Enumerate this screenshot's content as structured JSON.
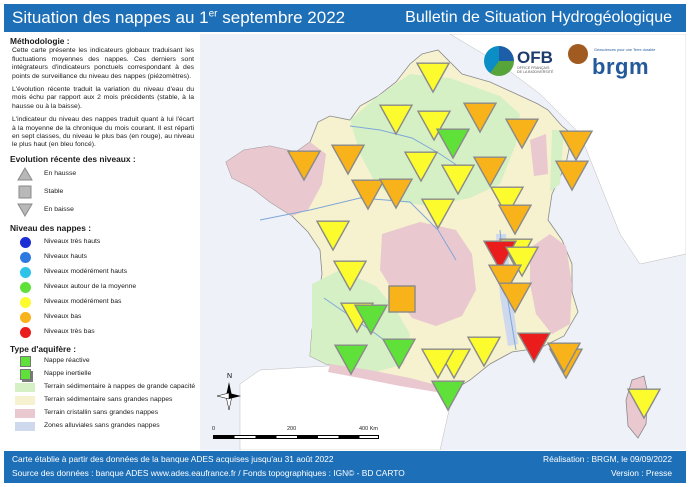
{
  "header": {
    "title_prefix": "Situation des nappes au 1",
    "title_sup": "er",
    "title_suffix": " septembre 2022",
    "subtitle": "Bulletin de Situation Hydrogéologique"
  },
  "methodology": {
    "heading": "Méthodologie :",
    "p1": "Cette carte présente les indicateurs globaux traduisant les fluctuations moyennes des nappes. Ces derniers sont intégrateurs d'indicateurs ponctuels correspondant à des points de surveillance du niveau des nappes (piézomètres).",
    "p2": "L'évolution récente traduit la variation du niveau d'eau du mois échu par rapport aux 2 mois précédents (stable, à la hausse ou à la baisse).",
    "p3": "L'indicateur du niveau des nappes traduit quant à lui l'écart à la moyenne de la chronique du mois courant. Il est réparti en sept classes, du niveau le plus bas (en rouge), au niveau le plus haut (en bleu foncé)."
  },
  "trend_legend": {
    "heading": "Evolution récente des niveaux :",
    "items": [
      {
        "label": "En hausse",
        "shape": "triangle-up"
      },
      {
        "label": "Stable",
        "shape": "square"
      },
      {
        "label": "En baisse",
        "shape": "triangle-down"
      }
    ]
  },
  "level_legend": {
    "heading": "Niveau des nappes :",
    "items": [
      {
        "label": "Niveaux très hauts",
        "color": "#1c2fd6"
      },
      {
        "label": "Niveaux hauts",
        "color": "#2e79e0"
      },
      {
        "label": "Niveaux modérément hauts",
        "color": "#2ec4ea"
      },
      {
        "label": "Niveaux autour de la moyenne",
        "color": "#5fe13a"
      },
      {
        "label": "Niveaux modérément bas",
        "color": "#fbfb2e"
      },
      {
        "label": "Niveaux bas",
        "color": "#f8b21a"
      },
      {
        "label": "Niveaux très bas",
        "color": "#ea1c1c"
      }
    ]
  },
  "aquifer_legend": {
    "heading": "Type d'aquifère :",
    "items": [
      {
        "label": "Nappe réactive",
        "color": "#5fe13a",
        "kind": "square"
      },
      {
        "label": "Nappe inertielle",
        "color": "#5fe13a",
        "kind": "square-shadow"
      },
      {
        "label": "Terrain sédimentaire à nappes de grande capacité",
        "color": "#d6f0c6",
        "kind": "swatch"
      },
      {
        "label": "Terrain sédimentaire sans grandes nappes",
        "color": "#f6f2cf",
        "kind": "swatch"
      },
      {
        "label": "Terrain cristallin sans grandes nappes",
        "color": "#e9c8cf",
        "kind": "swatch"
      },
      {
        "label": "Zones alluviales sans grandes nappes",
        "color": "#cfd9ee",
        "kind": "swatch"
      }
    ]
  },
  "map": {
    "colors": {
      "sea": "#eef1f8",
      "land_base": "#f6f2cf",
      "sedimentary_large": "#d6f0c6",
      "crystalline": "#e9c8cf",
      "neighbors": "#ffffff"
    },
    "markers": [
      {
        "id": "haut-de-france-1",
        "level": "modérément bas",
        "trend": "baisse",
        "color": "#fbfb2e"
      },
      {
        "id": "normandie-1",
        "level": "modérément bas",
        "trend": "baisse",
        "color": "#fbfb2e"
      },
      {
        "id": "normandie-2",
        "level": "bas",
        "trend": "baisse",
        "color": "#f8b21a"
      },
      {
        "id": "ile-de-france-1",
        "level": "modérément bas",
        "trend": "baisse",
        "color": "#fbfb2e"
      },
      {
        "id": "ile-de-france-2",
        "level": "autour de la moyenne",
        "trend": "baisse",
        "color": "#5fe13a"
      },
      {
        "id": "champagne-1",
        "level": "bas",
        "trend": "baisse",
        "color": "#f8b21a"
      },
      {
        "id": "lorraine-1",
        "level": "bas",
        "trend": "baisse",
        "color": "#f8b21a"
      },
      {
        "id": "alsace-1",
        "level": "bas",
        "trend": "baisse",
        "color": "#f8b21a"
      },
      {
        "id": "alsace-2",
        "level": "bas",
        "trend": "baisse",
        "color": "#f8b21a"
      },
      {
        "id": "bretagne-1",
        "level": "bas",
        "trend": "baisse",
        "color": "#f8b21a"
      },
      {
        "id": "pays-de-loire-1",
        "level": "bas",
        "trend": "baisse",
        "color": "#f8b21a"
      },
      {
        "id": "centre-1",
        "level": "bas",
        "trend": "baisse",
        "color": "#f8b21a"
      },
      {
        "id": "centre-2",
        "level": "modérément bas",
        "trend": "baisse",
        "color": "#fbfb2e"
      },
      {
        "id": "centre-3",
        "level": "modérément bas",
        "trend": "baisse",
        "color": "#fbfb2e"
      },
      {
        "id": "bourgogne-1",
        "level": "bas",
        "trend": "baisse",
        "color": "#f8b21a"
      },
      {
        "id": "bourgogne-2",
        "level": "modérément bas",
        "trend": "baisse",
        "color": "#fbfb2e"
      },
      {
        "id": "bourgogne-3",
        "level": "modérément bas",
        "trend": "baisse",
        "color": "#fbfb2e"
      },
      {
        "id": "loire-1",
        "level": "modérément bas",
        "trend": "baisse",
        "color": "#fbfb2e"
      },
      {
        "id": "rhone-1",
        "level": "bas",
        "trend": "baisse",
        "color": "#f8b21a"
      },
      {
        "id": "rhone-2",
        "level": "très bas",
        "trend": "baisse",
        "color": "#ea1c1c"
      },
      {
        "id": "rhone-3",
        "level": "modérément bas",
        "trend": "baisse",
        "color": "#fbfb2e"
      },
      {
        "id": "rhone-4",
        "level": "bas",
        "trend": "baisse",
        "color": "#f8b21a"
      },
      {
        "id": "rhone-5",
        "level": "bas",
        "trend": "baisse",
        "color": "#f8b21a"
      },
      {
        "id": "alpes-1",
        "level": "bas",
        "trend": "baisse",
        "color": "#f8b21a"
      },
      {
        "id": "poitou-1",
        "level": "modérément bas",
        "trend": "baisse",
        "color": "#fbfb2e"
      },
      {
        "id": "poitou-2",
        "level": "modérément bas",
        "trend": "baisse",
        "color": "#fbfb2e"
      },
      {
        "id": "aquitaine-1",
        "level": "modérément bas",
        "trend": "baisse",
        "color": "#fbfb2e"
      },
      {
        "id": "aquitaine-2",
        "level": "autour de la moyenne",
        "trend": "baisse",
        "color": "#5fe13a"
      },
      {
        "id": "limousin-1",
        "level": "bas",
        "trend": "stable",
        "color": "#f8b21a"
      },
      {
        "id": "aquitaine-3",
        "level": "autour de la moyenne",
        "trend": "baisse",
        "color": "#5fe13a"
      },
      {
        "id": "midi-pyrenees-1",
        "level": "autour de la moyenne",
        "trend": "baisse",
        "color": "#5fe13a"
      },
      {
        "id": "languedoc-1",
        "level": "modérément bas",
        "trend": "baisse",
        "color": "#fbfb2e"
      },
      {
        "id": "languedoc-2",
        "level": "modérément bas",
        "trend": "baisse",
        "color": "#fbfb2e"
      },
      {
        "id": "provence-1",
        "level": "très bas",
        "trend": "baisse",
        "color": "#ea1c1c"
      },
      {
        "id": "provence-2",
        "level": "bas",
        "trend": "baisse",
        "color": "#f8b21a"
      },
      {
        "id": "roussillon-1",
        "level": "autour de la moyenne",
        "trend": "baisse",
        "color": "#5fe13a"
      },
      {
        "id": "gard-1",
        "level": "modérément bas",
        "trend": "baisse",
        "color": "#fbfb2e"
      },
      {
        "id": "corse-1",
        "level": "modérément bas",
        "trend": "baisse",
        "color": "#fbfb2e"
      }
    ]
  },
  "logos": {
    "ofb_name": "OFB",
    "ofb_sub1": "OFFICE FRANÇAIS",
    "ofb_sub2": "DE LA BIODIVERSITÉ",
    "brgm_tag": "Géosciences pour une Terre durable",
    "brgm_name": "brgm"
  },
  "scale": {
    "t0": "0",
    "t1": "200",
    "t2": "400 Km"
  },
  "compass": {
    "north": "N"
  },
  "footer": {
    "line1": "Carte établie à partir des données de la banque ADES acquises jusqu'au 31 août 2022",
    "line2": "Source des données : banque ADES www.ades.eaufrance.fr / Fonds topographiques : IGN© - BD CARTO",
    "right1": "Réalisation : BRGM, le 09/09/2022",
    "right2": "Version : Presse"
  }
}
